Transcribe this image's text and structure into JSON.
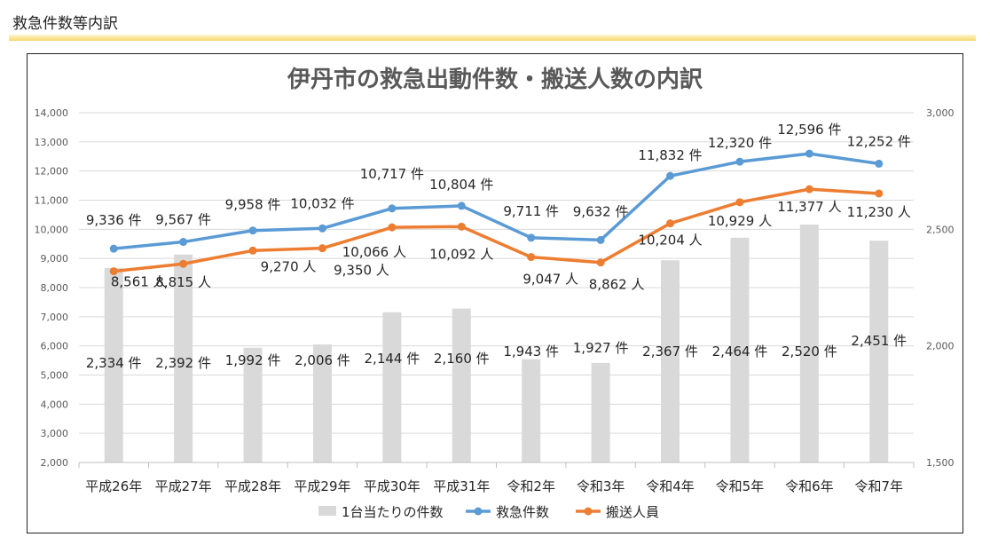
{
  "page": {
    "section_title": "救急件数等内訳"
  },
  "chart_data": {
    "type": "bar",
    "title": "伊丹市の救急出動件数・搬送人数の内訳",
    "categories": [
      "平成26年",
      "平成27年",
      "平成28年",
      "平成29年",
      "平成30年",
      "平成31年",
      "令和2年",
      "令和3年",
      "令和4年",
      "令和5年",
      "令和6年",
      "令和7年"
    ],
    "y_left": {
      "min": 2000,
      "max": 14000,
      "step": 1000,
      "ticks": [
        "2,000",
        "3,000",
        "4,000",
        "5,000",
        "6,000",
        "7,000",
        "8,000",
        "9,000",
        "10,000",
        "11,000",
        "12,000",
        "13,000",
        "14,000"
      ]
    },
    "y_right": {
      "min": 1500,
      "max": 3000,
      "step": 500,
      "ticks": [
        "1,500",
        "2,000",
        "2,500",
        "3,000"
      ]
    },
    "grid": true,
    "legend_position": "bottom",
    "series": [
      {
        "name": "1台当たりの件数",
        "kind": "bar",
        "axis": "right",
        "color": "#d9d9d9",
        "values": [
          2334,
          2392,
          1992,
          2006,
          2144,
          2160,
          1943,
          1927,
          2367,
          2464,
          2520,
          2451
        ],
        "labels": [
          "2,334 件",
          "2,392 件",
          "1,992 件",
          "2,006 件",
          "2,144 件",
          "2,160 件",
          "1,943 件",
          "1,927 件",
          "2,367 件",
          "2,464 件",
          "2,520 件",
          "2,451 件"
        ]
      },
      {
        "name": "救急件数",
        "kind": "line",
        "axis": "left",
        "color": "#5b9bd5",
        "values": [
          9336,
          9567,
          9958,
          10032,
          10717,
          10804,
          9711,
          9632,
          11832,
          12320,
          12596,
          12252
        ],
        "labels": [
          "9,336 件",
          "9,567 件",
          "9,958 件",
          "10,032 件",
          "10,717 件",
          "10,804 件",
          "9,711 件",
          "9,632 件",
          "11,832 件",
          "12,320 件",
          "12,596 件",
          "12,252 件"
        ]
      },
      {
        "name": "搬送人員",
        "kind": "line",
        "axis": "left",
        "color": "#ed7d31",
        "values": [
          8561,
          8815,
          9270,
          9350,
          10066,
          10092,
          9047,
          8862,
          10204,
          10929,
          11377,
          11230
        ],
        "labels": [
          "8,561 人",
          "8,815 人",
          "9,270 人",
          "9,350 人",
          "10,066 人",
          "10,092 人",
          "9,047 人",
          "8,862 人",
          "10,204 人",
          "10,929 人",
          "11,377 人",
          "11,230 人"
        ]
      }
    ]
  }
}
